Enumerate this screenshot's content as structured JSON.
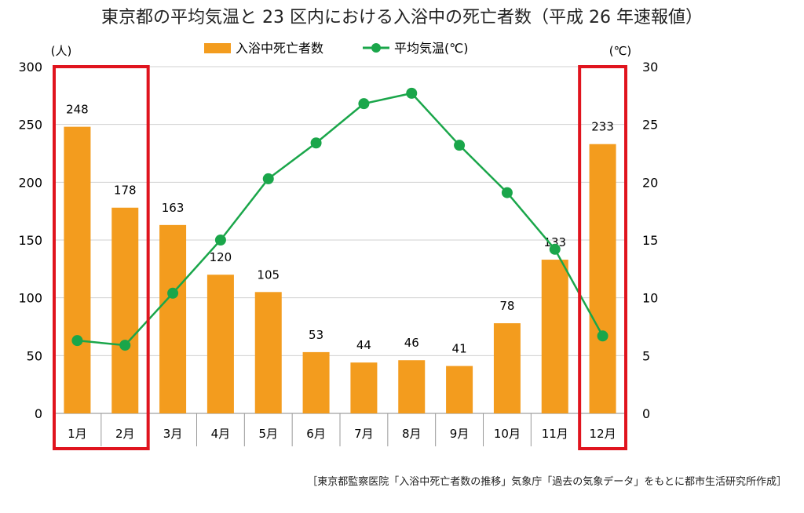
{
  "chart_data": {
    "type": "bar+line",
    "title": "東京都の平均気温と 23 区内における入浴中の死亡者数（平成 26 年速報値）",
    "categories": [
      "1月",
      "2月",
      "3月",
      "4月",
      "5月",
      "6月",
      "7月",
      "8月",
      "9月",
      "10月",
      "11月",
      "12月"
    ],
    "series": [
      {
        "name": "入浴中死亡者数",
        "type": "bar",
        "axis": "left",
        "color": "#f39c1e",
        "values": [
          248,
          178,
          163,
          120,
          105,
          53,
          44,
          46,
          41,
          78,
          133,
          233
        ]
      },
      {
        "name": "平均気温(℃)",
        "type": "line",
        "axis": "right",
        "color": "#1aa64a",
        "values": [
          6.3,
          5.9,
          10.4,
          15.0,
          20.3,
          23.4,
          26.8,
          27.7,
          23.2,
          19.1,
          14.2,
          6.7
        ]
      }
    ],
    "ylabel_left": "(人)",
    "ylabel_right": "(℃)",
    "ylim_left": [
      0,
      300
    ],
    "ylim_right": [
      0,
      30
    ],
    "yticks_left": [
      0,
      50,
      100,
      150,
      200,
      250,
      300
    ],
    "yticks_right": [
      0,
      5,
      10,
      15,
      20,
      25,
      30
    ],
    "legend_position": "top",
    "grid": true,
    "highlighted_categories": [
      "1月",
      "2月",
      "12月"
    ],
    "highlight_color": "#e0141e",
    "source_note": "［東京都監察医院「入浴中死亡者数の推移」気象庁「過去の気象データ」をもとに都市生活研究所作成］"
  }
}
